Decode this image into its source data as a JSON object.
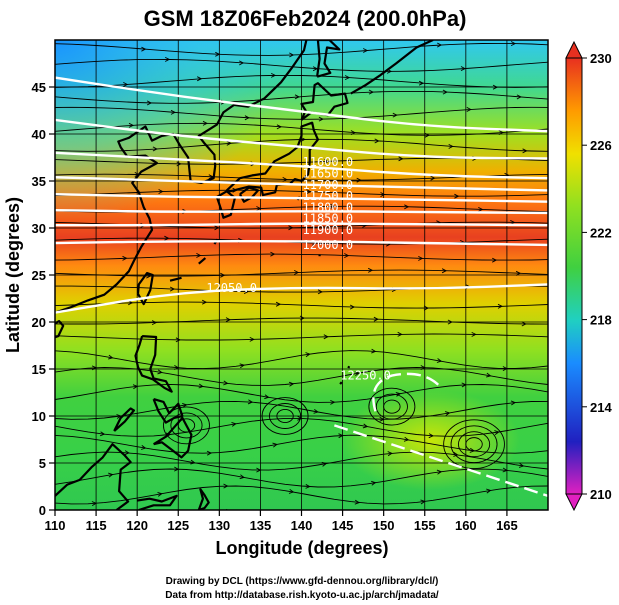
{
  "title": "GSM 18Z06Feb2024 (200.0hPa)",
  "axes": {
    "xlabel": "Longitude (degrees)",
    "ylabel": "Latitude  (degrees)",
    "xticks": [
      "110",
      "115",
      "120",
      "125",
      "130",
      "135",
      "140",
      "145",
      "150",
      "155",
      "160",
      "165"
    ],
    "yticks": [
      "0",
      "5",
      "10",
      "15",
      "20",
      "25",
      "30",
      "35",
      "40",
      "45"
    ],
    "xlim": [
      110,
      170
    ],
    "ylim": [
      0,
      50
    ]
  },
  "colorbar": {
    "labels": [
      "230",
      "226",
      "222",
      "218",
      "214",
      "210"
    ],
    "range": [
      210,
      230
    ],
    "colors": [
      "#d020b0",
      "#2020c0",
      "#1a8cff",
      "#20d0c0",
      "#40d040",
      "#90e020",
      "#f0e000",
      "#ff9a00",
      "#e83020"
    ]
  },
  "contour_labels": [
    {
      "text": "11600.0",
      "lon": 143.2,
      "lat": 37.0
    },
    {
      "text": "11650.0",
      "lon": 143.2,
      "lat": 35.8
    },
    {
      "text": "11700.0",
      "lon": 143.2,
      "lat": 34.6
    },
    {
      "text": "11750.0",
      "lon": 143.2,
      "lat": 33.4
    },
    {
      "text": "11800.0",
      "lon": 143.2,
      "lat": 32.2
    },
    {
      "text": "11850.0",
      "lon": 143.2,
      "lat": 31.0
    },
    {
      "text": "11900.0",
      "lon": 143.2,
      "lat": 29.8
    },
    {
      "text": "12000.0",
      "lon": 143.2,
      "lat": 28.2
    },
    {
      "text": "12050.0",
      "lon": 131.5,
      "lat": 23.6
    },
    {
      "text": "12250.0",
      "lon": 147.8,
      "lat": 14.3
    }
  ],
  "credits": {
    "line1": "Drawing by DCL (https://www.gfd-dennou.org/library/dcl/)",
    "line2": "Data from http://database.rish.kyoto-u.ac.jp/arch/jmadata/"
  }
}
